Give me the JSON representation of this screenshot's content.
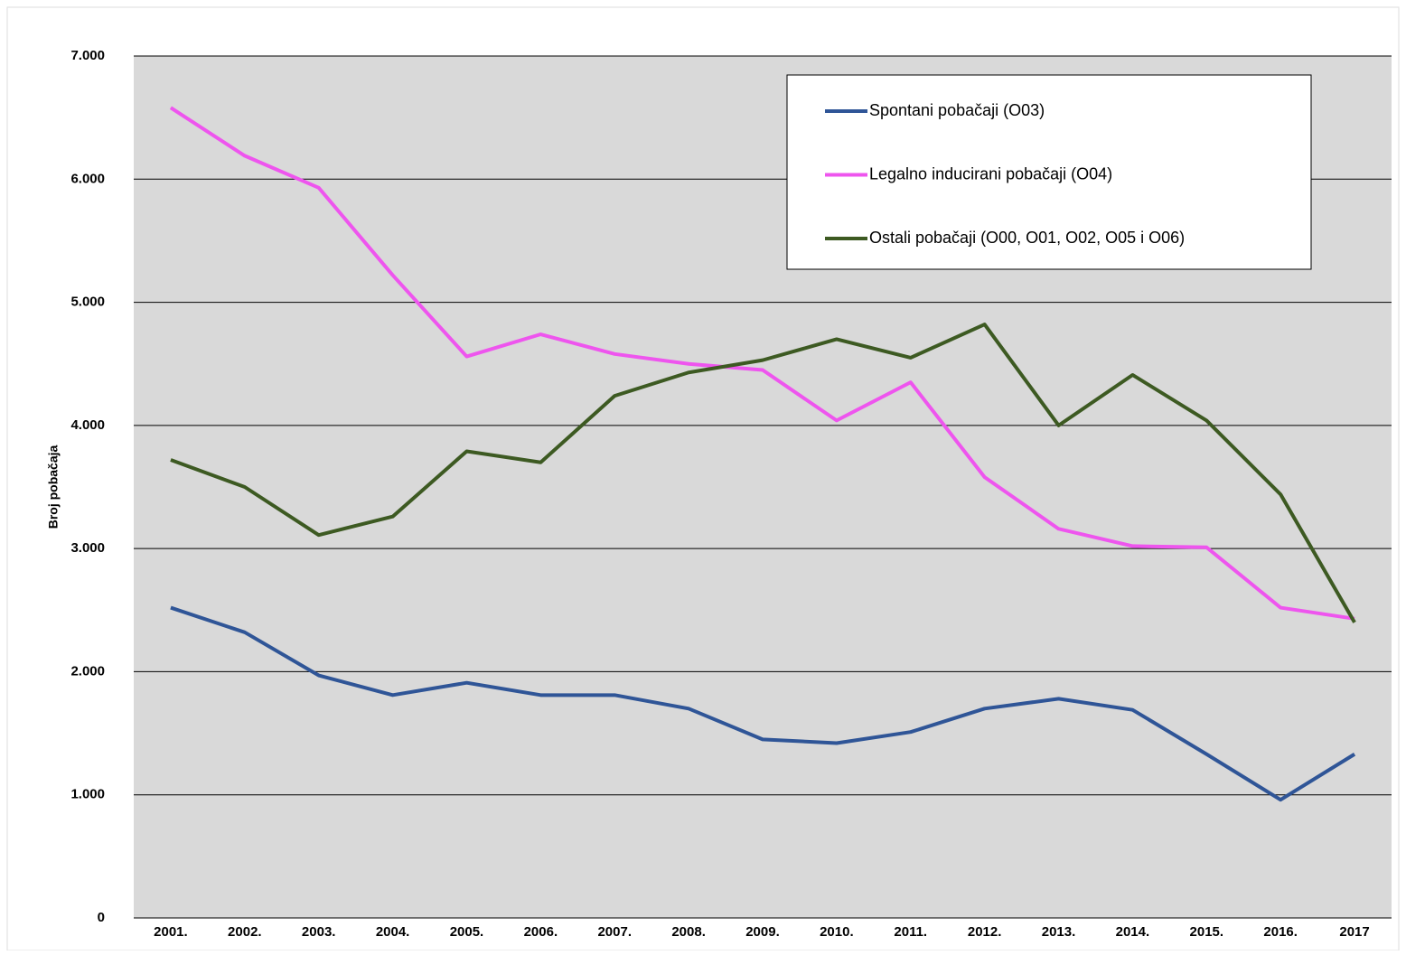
{
  "chart_data": {
    "type": "line",
    "y_label": "Broj pobačaja",
    "categories": [
      "2001.",
      "2002.",
      "2003.",
      "2004.",
      "2005.",
      "2006.",
      "2007.",
      "2008.",
      "2009.",
      "2010.",
      "2011.",
      "2012.",
      "2013.",
      "2014.",
      "2015.",
      "2016.",
      "2017"
    ],
    "series": [
      {
        "name": "Spontani pobačaji (O03)",
        "color": "#2f5597",
        "values": [
          2520,
          2320,
          1970,
          1810,
          1910,
          1810,
          1810,
          1700,
          1450,
          1420,
          1510,
          1700,
          1780,
          1690,
          1330,
          960,
          1330
        ]
      },
      {
        "name": "Legalno inducirani pobačaji (O04)",
        "color": "#ee55ee",
        "values": [
          6580,
          6190,
          5930,
          5220,
          4560,
          4740,
          4580,
          4500,
          4450,
          4040,
          4350,
          3580,
          3160,
          3020,
          3010,
          2520,
          2430
        ]
      },
      {
        "name": "Ostali pobačaji (O00, O01, O02, O05 i O06)",
        "color": "#3d5a22",
        "values": [
          3720,
          3500,
          3110,
          3260,
          3790,
          3700,
          4240,
          4430,
          4530,
          4700,
          4550,
          4820,
          4000,
          4410,
          4040,
          3440,
          2400
        ]
      }
    ],
    "ylim": [
      0,
      7000
    ],
    "yticks": [
      0,
      {
        "value": 1000,
        "label": "1.000"
      },
      {
        "value": 2000,
        "label": "2.000"
      },
      {
        "value": 3000,
        "label": "3.000"
      },
      {
        "value": 4000,
        "label": "4.000"
      },
      {
        "value": 5000,
        "label": "5.000"
      },
      {
        "value": 6000,
        "label": "6.000"
      },
      {
        "value": 7000,
        "label": "7.000"
      }
    ],
    "grid": true,
    "legend": "top-right"
  }
}
